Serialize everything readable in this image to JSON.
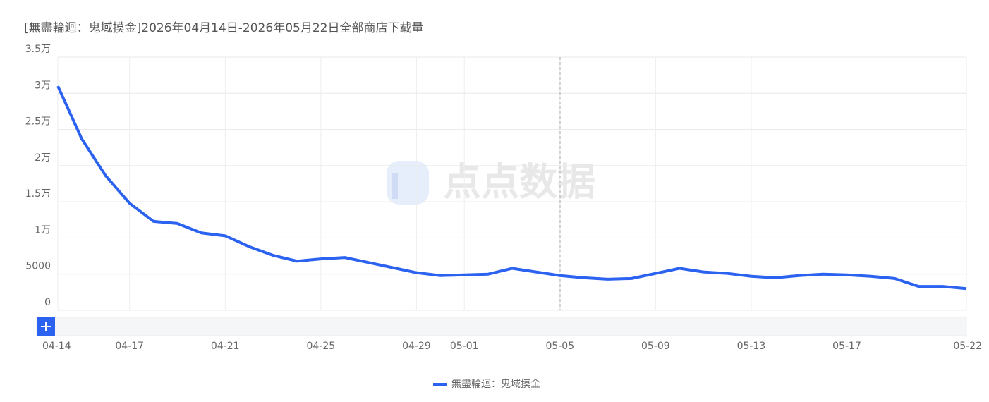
{
  "chart_data": {
    "type": "line",
    "title": "[無盡輪迴：鬼域摸金]2026年04月14日-2026年05月22日全部商店下载量",
    "watermark": "点点数据",
    "categories": [
      "04-14",
      null,
      null,
      "04-17",
      null,
      null,
      null,
      "04-21",
      null,
      null,
      null,
      "04-25",
      null,
      null,
      null,
      "04-29",
      null,
      "05-01",
      null,
      null,
      null,
      "05-05",
      null,
      null,
      null,
      "05-09",
      null,
      null,
      null,
      "05-13",
      null,
      null,
      null,
      "05-17",
      null,
      null,
      null,
      null,
      "05-22"
    ],
    "series": [
      {
        "name": "無盡輪迴：鬼域摸金",
        "color": "#2b62f0",
        "values": [
          31000,
          23700,
          18600,
          14800,
          12300,
          12000,
          10700,
          10300,
          8800,
          7600,
          6800,
          7100,
          7300,
          6600,
          5900,
          5200,
          4800,
          4900,
          5000,
          5800,
          5300,
          4800,
          4500,
          4300,
          4400,
          5100,
          5800,
          5300,
          5100,
          4700,
          4500,
          4800,
          5000,
          4900,
          4700,
          4400,
          3300,
          3300,
          3000
        ]
      }
    ],
    "ylim": [
      0,
      35000
    ],
    "yticks": [
      0,
      5000,
      {
        "value": 10000,
        "label": "1万"
      },
      {
        "value": 15000,
        "label": "1.5万"
      },
      {
        "value": 20000,
        "label": "2万"
      },
      {
        "value": 25000,
        "label": "2.5万"
      },
      {
        "value": 30000,
        "label": "3万"
      },
      {
        "value": 35000,
        "label": "3.5万"
      }
    ],
    "grid": true
  }
}
